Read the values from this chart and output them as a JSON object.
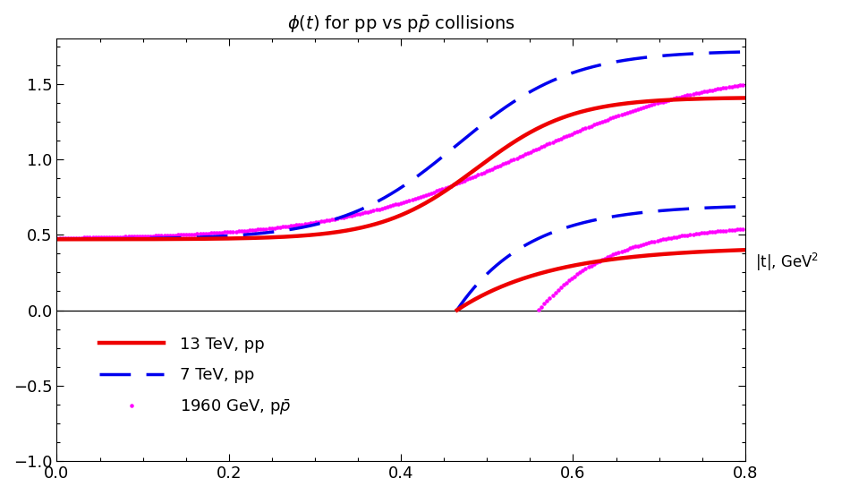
{
  "title": "$\\phi(t)$ for pp vs p$\\bar{p}$ collisions",
  "right_label": "|t|, GeV$^2$",
  "xlim": [
    0.0,
    0.8
  ],
  "ylim": [
    -1.0,
    1.8
  ],
  "yticks": [
    -1.0,
    -0.5,
    0.0,
    0.5,
    1.0,
    1.5
  ],
  "xticks": [
    0.0,
    0.2,
    0.4,
    0.6,
    0.8
  ],
  "line_color_13tev": "#ee0000",
  "line_color_7tev": "#0000ee",
  "line_color_1960gev": "#ff00ff",
  "legend_entries": [
    "13 TeV, pp",
    "7 TeV, pp",
    "1960 GeV, p$\\bar{p}$"
  ]
}
